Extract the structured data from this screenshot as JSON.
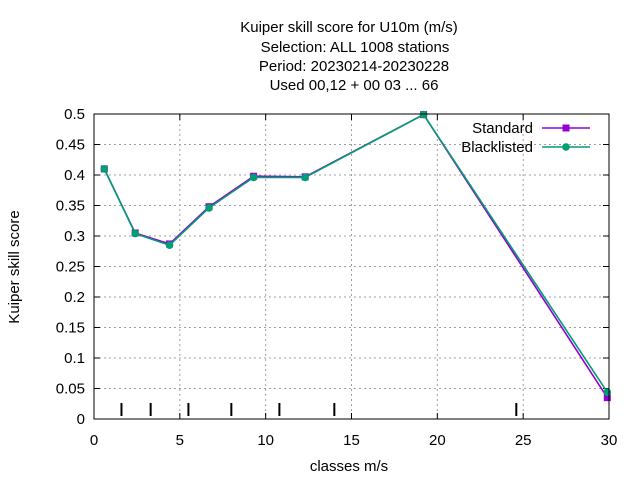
{
  "chart_data": {
    "type": "line",
    "title_lines": [
      "Kuiper skill score  for U10m (m/s)",
      "Selection: ALL   1008 stations",
      "Period: 20230214-20230228",
      "Used  00,12  + 00 03 ... 66"
    ],
    "xlabel": "classes m/s",
    "ylabel": "Kuiper skill score",
    "xlim": [
      0,
      30
    ],
    "ylim": [
      0,
      0.5
    ],
    "xticks": [
      "0",
      "5",
      "10",
      "15",
      "20",
      "25",
      "30"
    ],
    "yticks": [
      "0",
      "0.05",
      "0.1",
      "0.15",
      "0.2",
      "0.25",
      "0.3",
      "0.35",
      "0.4",
      "0.45",
      "0.5"
    ],
    "grid": true,
    "legend_position": "top-right",
    "class_markers_x": [
      1.6,
      3.3,
      5.5,
      8.0,
      10.8,
      14.0,
      24.6
    ],
    "series": [
      {
        "name": "Standard",
        "color": "#9400d3",
        "x": [
          0.6,
          2.4,
          4.4,
          6.7,
          9.3,
          12.3,
          19.2,
          29.9
        ],
        "y": [
          0.41,
          0.305,
          0.287,
          0.348,
          0.398,
          0.397,
          0.499,
          0.035
        ]
      },
      {
        "name": "Blacklisted",
        "color": "#009e73",
        "x": [
          0.6,
          2.4,
          4.4,
          6.7,
          9.3,
          12.3,
          19.2,
          29.9
        ],
        "y": [
          0.41,
          0.304,
          0.285,
          0.346,
          0.396,
          0.396,
          0.499,
          0.044
        ]
      }
    ]
  }
}
